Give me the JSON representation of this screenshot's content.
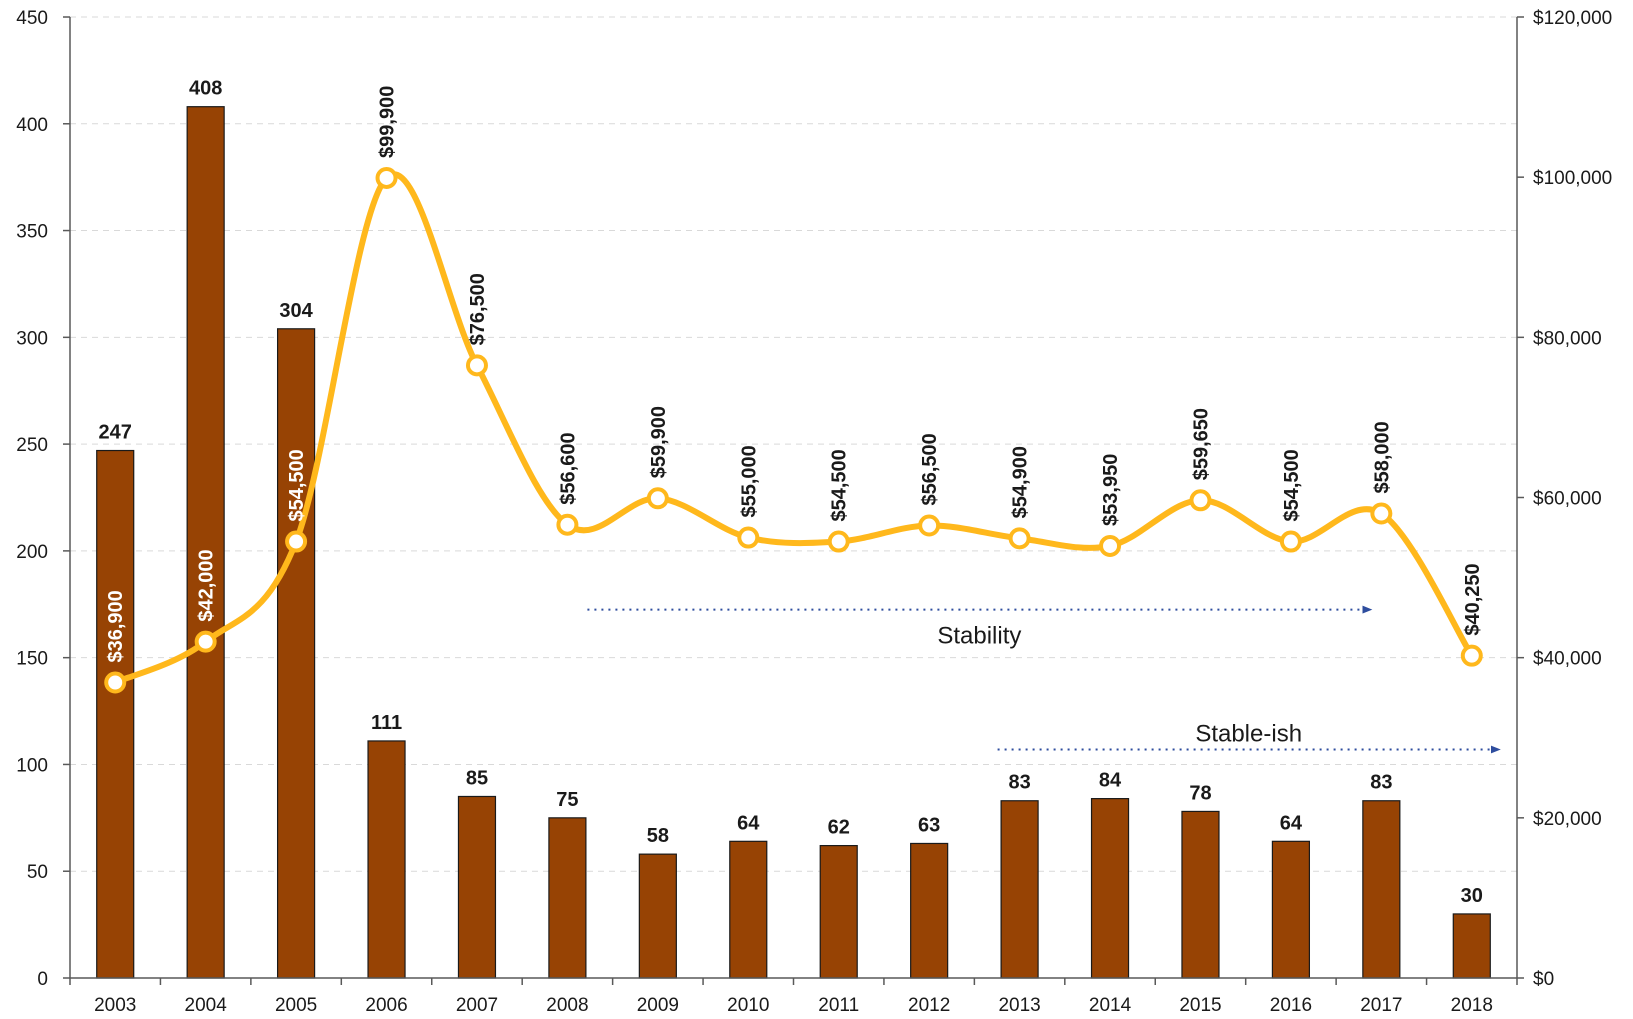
{
  "chart_data": {
    "type": "bar",
    "title": "",
    "xlabel": "",
    "ylabel": "",
    "y2label": "",
    "categories": [
      "2003",
      "2004",
      "2005",
      "2006",
      "2007",
      "2008",
      "2009",
      "2010",
      "2011",
      "2012",
      "2013",
      "2014",
      "2015",
      "2016",
      "2017",
      "2018"
    ],
    "ylim": [
      0,
      450
    ],
    "y_ticks": [
      0,
      50,
      100,
      150,
      200,
      250,
      300,
      350,
      400,
      450
    ],
    "y2lim": [
      0,
      120000
    ],
    "y2_ticks": [
      0,
      20000,
      40000,
      60000,
      80000,
      100000,
      120000
    ],
    "y2_tick_labels": [
      "$0",
      "$20,000",
      "$40,000",
      "$60,000",
      "$80,000",
      "$100,000",
      "$120,000"
    ],
    "grid": true,
    "legend": "none",
    "series": [
      {
        "type": "bar",
        "axis": "left",
        "color": "#974304",
        "values": [
          247,
          408,
          304,
          111,
          85,
          75,
          58,
          64,
          62,
          63,
          83,
          84,
          78,
          64,
          83,
          30
        ],
        "labels": [
          "247",
          "408",
          "304",
          "111",
          "85",
          "75",
          "58",
          "64",
          "62",
          "63",
          "83",
          "84",
          "78",
          "64",
          "83",
          "30"
        ]
      },
      {
        "type": "line",
        "axis": "right",
        "color": "#FFB81C",
        "smooth": true,
        "values": [
          36900,
          42000,
          54500,
          99900,
          76500,
          56600,
          59900,
          55000,
          54500,
          56500,
          54900,
          53950,
          59650,
          54500,
          58000,
          40250
        ],
        "labels": [
          "$36,900",
          "$42,000",
          "$54,500",
          "$99,900",
          "$76,500",
          "$56,600",
          "$59,900",
          "$55,000",
          "$54,500",
          "$56,500",
          "$54,900",
          "$53,950",
          "$59,650",
          "$54,500",
          "$58,000",
          "$40,250"
        ]
      }
    ],
    "annotations": [
      {
        "text": "Stability",
        "axis": "right",
        "from": "2008",
        "to": "2017",
        "value": 46000,
        "color": "#2E4D9E"
      },
      {
        "text": "Stable-ish",
        "axis": "left",
        "from": "2013",
        "to": "2018",
        "value": 107,
        "color": "#2E4D9E"
      }
    ]
  }
}
